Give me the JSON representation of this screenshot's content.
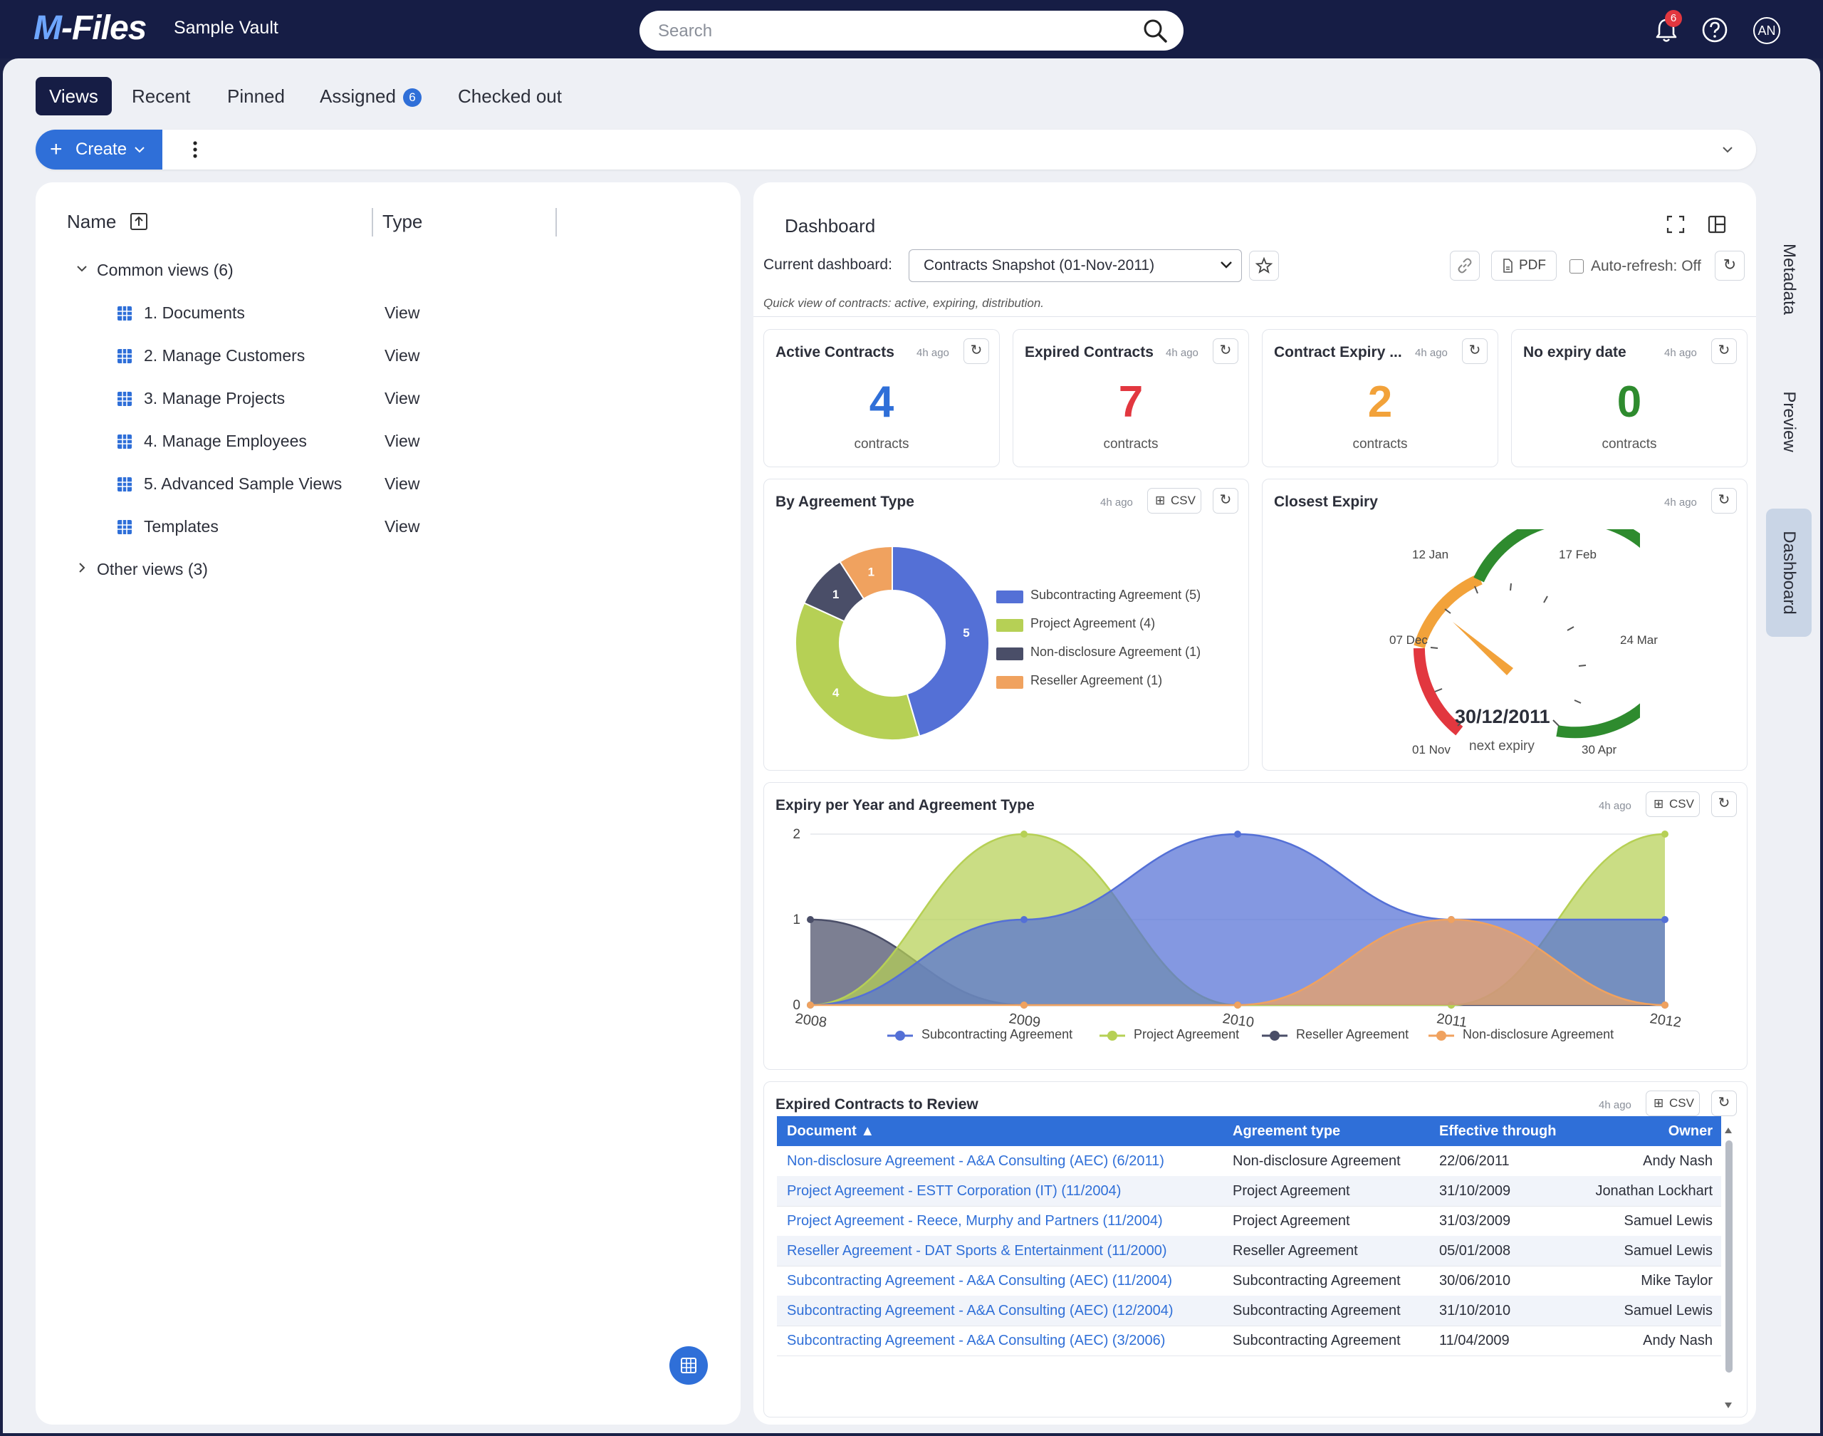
{
  "app": {
    "logo": "M-Files",
    "vault_name": "Sample Vault",
    "search_placeholder": "Search",
    "notification_count": "6",
    "user_initials": "AN"
  },
  "tabs": [
    {
      "label": "Views",
      "active": true
    },
    {
      "label": "Recent"
    },
    {
      "label": "Pinned"
    },
    {
      "label": "Assigned",
      "badge": "6"
    },
    {
      "label": "Checked out"
    }
  ],
  "toolbar": {
    "create_label": "Create"
  },
  "list": {
    "columns": {
      "name": "Name",
      "type": "Type"
    },
    "groups": [
      {
        "label": "Common views (6)",
        "expanded": true,
        "items": [
          {
            "name": "1. Documents",
            "type": "View"
          },
          {
            "name": "2. Manage Customers",
            "type": "View"
          },
          {
            "name": "3. Manage Projects",
            "type": "View"
          },
          {
            "name": "4. Manage Employees",
            "type": "View"
          },
          {
            "name": "5. Advanced Sample Views",
            "type": "View"
          },
          {
            "name": "Templates",
            "type": "View"
          }
        ]
      },
      {
        "label": "Other views (3)",
        "expanded": false
      }
    ]
  },
  "dashboard": {
    "title": "Dashboard",
    "current_label": "Current dashboard:",
    "current_value": "Contracts Snapshot (01-Nov-2011)",
    "pdf_label": "PDF",
    "autorefresh_label": "Auto-refresh: Off",
    "subtitle": "Quick view of contracts: active, expiring, distribution.",
    "kpis": [
      {
        "title": "Active Contracts",
        "ago": "4h ago",
        "value": "4",
        "unit": "contracts",
        "color": "#2f6fd8"
      },
      {
        "title": "Expired Contracts",
        "ago": "4h ago",
        "value": "7",
        "unit": "contracts",
        "color": "#e2373f"
      },
      {
        "title": "Contract Expiry ...",
        "ago": "4h ago",
        "value": "2",
        "unit": "contracts",
        "color": "#f2a23a"
      },
      {
        "title": "No expiry date",
        "ago": "4h ago",
        "value": "0",
        "unit": "contracts",
        "color": "#2e8b2e"
      }
    ],
    "donut": {
      "title": "By Agreement Type",
      "ago": "4h ago",
      "csv_label": "CSV",
      "legend": [
        "Subcontracting Agreement (5)",
        "Project Agreement (4)",
        "Non-disclosure Agreement (1)",
        "Reseller Agreement (1)"
      ]
    },
    "gauge": {
      "title": "Closest Expiry",
      "ago": "4h ago",
      "value_text": "30/12/2011",
      "caption": "next expiry",
      "labels": [
        "01 Nov",
        "07 Dec",
        "12 Jan",
        "17 Feb",
        "24 Mar",
        "30 Apr"
      ]
    },
    "area": {
      "title": "Expiry per Year and Agreement Type",
      "ago": "4h ago",
      "csv_label": "CSV"
    },
    "table": {
      "title": "Expired Contracts to Review",
      "ago": "4h ago",
      "csv_label": "CSV",
      "columns": [
        "Document ▲",
        "Agreement type",
        "Effective through",
        "Owner"
      ],
      "rows": [
        {
          "doc": "Non-disclosure Agreement - A&A Consulting (AEC) (6/2011)",
          "type": "Non-disclosure Agreement",
          "date": "22/06/2011",
          "owner": "Andy Nash"
        },
        {
          "doc": "Project Agreement - ESTT Corporation (IT) (11/2004)",
          "type": "Project Agreement",
          "date": "31/10/2009",
          "owner": "Jonathan Lockhart"
        },
        {
          "doc": "Project Agreement - Reece, Murphy and Partners (11/2004)",
          "type": "Project Agreement",
          "date": "31/03/2009",
          "owner": "Samuel Lewis"
        },
        {
          "doc": "Reseller Agreement - DAT Sports & Entertainment (11/2000)",
          "type": "Reseller Agreement",
          "date": "05/01/2008",
          "owner": "Samuel Lewis"
        },
        {
          "doc": "Subcontracting Agreement - A&A Consulting (AEC) (11/2004)",
          "type": "Subcontracting Agreement",
          "date": "30/06/2010",
          "owner": "Mike Taylor"
        },
        {
          "doc": "Subcontracting Agreement - A&A Consulting (AEC) (12/2004)",
          "type": "Subcontracting Agreement",
          "date": "31/10/2010",
          "owner": "Samuel Lewis"
        },
        {
          "doc": "Subcontracting Agreement - A&A Consulting (AEC) (3/2006)",
          "type": "Subcontracting Agreement",
          "date": "11/04/2009",
          "owner": "Andy Nash"
        }
      ]
    }
  },
  "side_rail": [
    "Metadata",
    "Preview",
    "Dashboard"
  ],
  "chart_data": [
    {
      "type": "pie",
      "title": "By Agreement Type",
      "categories": [
        "Subcontracting Agreement",
        "Project Agreement",
        "Non-disclosure Agreement",
        "Reseller Agreement"
      ],
      "values": [
        5,
        4,
        1,
        1
      ],
      "colors": [
        "#5470d6",
        "#b6d055",
        "#4a4e68",
        "#f0a25f"
      ],
      "legend": "right"
    },
    {
      "type": "area",
      "title": "Expiry per Year and Agreement Type",
      "x": [
        "2008",
        "2009",
        "2010",
        "2011",
        "2012"
      ],
      "ylim": [
        0,
        2
      ],
      "grid": true,
      "legend": "bottom",
      "series": [
        {
          "name": "Subcontracting Agreement",
          "values": [
            0,
            1,
            2,
            1,
            1
          ],
          "color": "#5470d6"
        },
        {
          "name": "Project Agreement",
          "values": [
            0,
            2,
            0,
            0,
            2
          ],
          "color": "#b6d055"
        },
        {
          "name": "Reseller Agreement",
          "values": [
            1,
            0,
            0,
            0,
            0
          ],
          "color": "#4a4e68"
        },
        {
          "name": "Non-disclosure Agreement",
          "values": [
            0,
            0,
            0,
            1,
            0
          ],
          "color": "#f0a25f"
        }
      ]
    }
  ]
}
